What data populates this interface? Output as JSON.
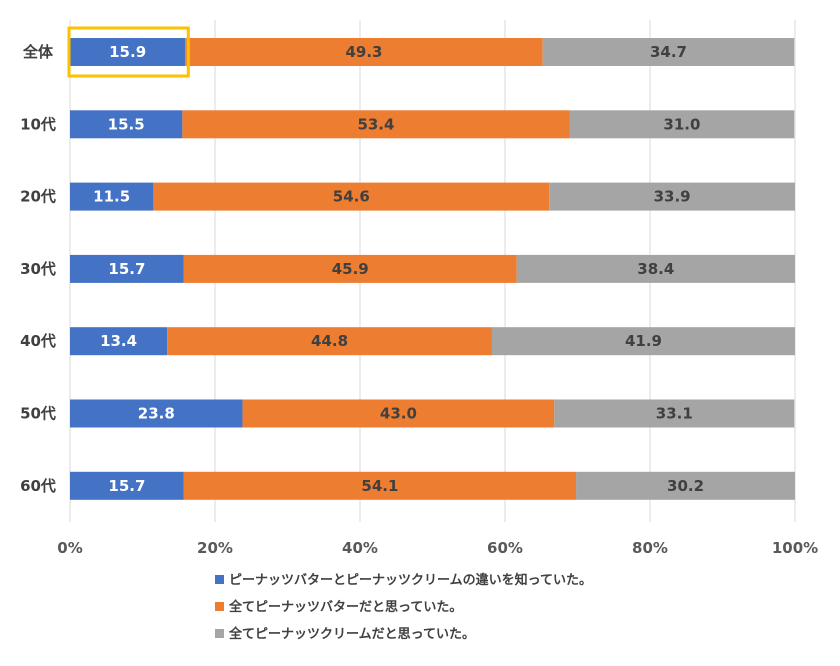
{
  "chart_data": {
    "type": "bar",
    "orientation": "horizontal",
    "stacked": true,
    "categories": [
      "全体",
      "10代",
      "20代",
      "30代",
      "40代",
      "50代",
      "60代"
    ],
    "series": [
      {
        "name": "ピーナッツバターとピーナッツクリームの違いを知っていた。",
        "color": "#4472C4",
        "label_color": "#ffffff",
        "values": [
          15.9,
          15.5,
          11.5,
          15.7,
          13.4,
          23.8,
          15.7
        ]
      },
      {
        "name": "全てピーナッツバターだと思っていた。",
        "color": "#ED7D31",
        "label_color": "#404040",
        "values": [
          49.3,
          53.4,
          54.6,
          45.9,
          44.8,
          43.0,
          54.1
        ]
      },
      {
        "name": "全てピーナッツクリームだと思っていた。",
        "color": "#A5A5A5",
        "label_color": "#404040",
        "values": [
          34.7,
          31.0,
          33.9,
          38.4,
          41.9,
          33.1,
          30.2
        ]
      }
    ],
    "value_labels": [
      [
        "15.9",
        "15.5",
        "11.5",
        "15.7",
        "13.4",
        "23.8",
        "15.7"
      ],
      [
        "49.3",
        "53.4",
        "54.6",
        "45.9",
        "44.8",
        "43.0",
        "54.1"
      ],
      [
        "34.7",
        "31.0",
        "33.9",
        "38.4",
        "41.9",
        "33.1",
        "30.2"
      ]
    ],
    "x_ticks": [
      "0%",
      "20%",
      "40%",
      "60%",
      "80%",
      "100%"
    ],
    "xlim": [
      0,
      100
    ],
    "grid": "vertical",
    "grid_color": "#D9D9D9",
    "legend_position": "bottom",
    "highlight": {
      "category": "全体",
      "series_index": 0,
      "color": "#FFC000"
    }
  }
}
